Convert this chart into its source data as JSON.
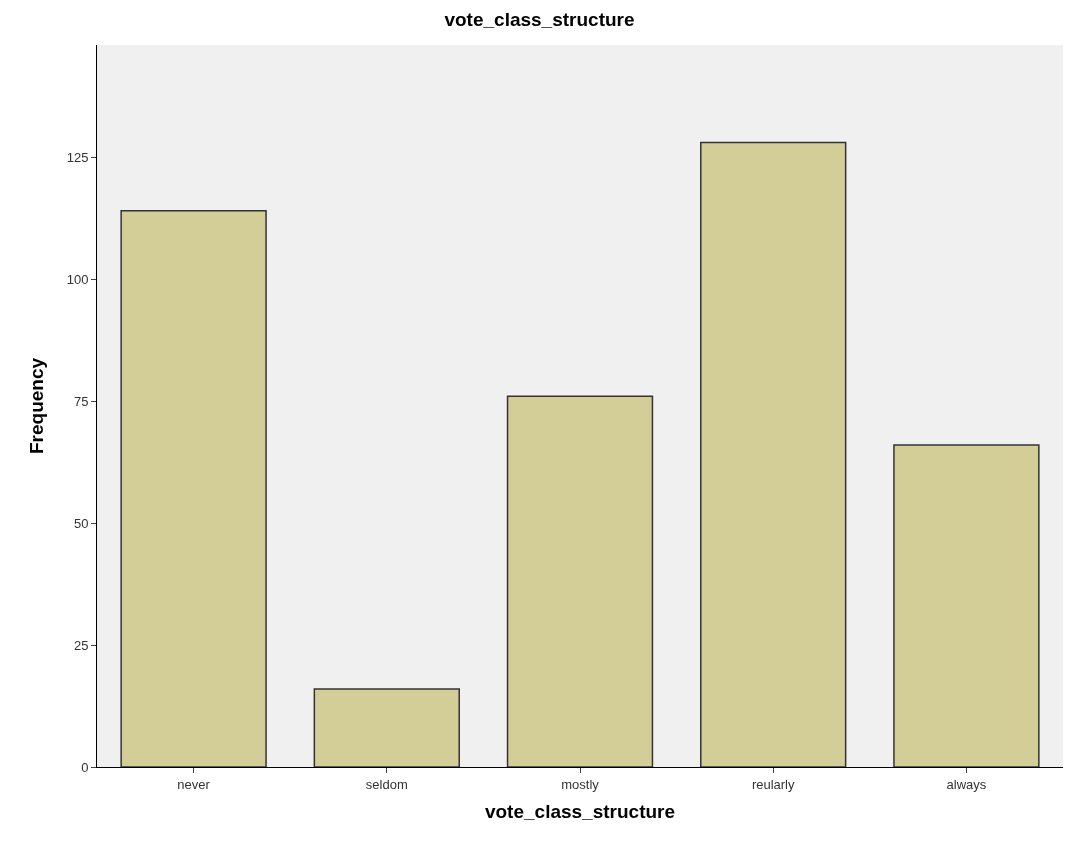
{
  "chart_data": {
    "type": "bar",
    "title": "vote_class_structure",
    "xlabel": "vote_class_structure",
    "ylabel": "Frequency",
    "categories": [
      "never",
      "seldom",
      "mostly",
      "reularly",
      "always"
    ],
    "values": [
      114,
      16,
      76,
      128,
      66
    ],
    "color": "#d3ce97",
    "ylim": [
      0,
      148
    ],
    "yticks": [
      0,
      25,
      50,
      75,
      100,
      125
    ],
    "grid": false,
    "legend": false
  }
}
